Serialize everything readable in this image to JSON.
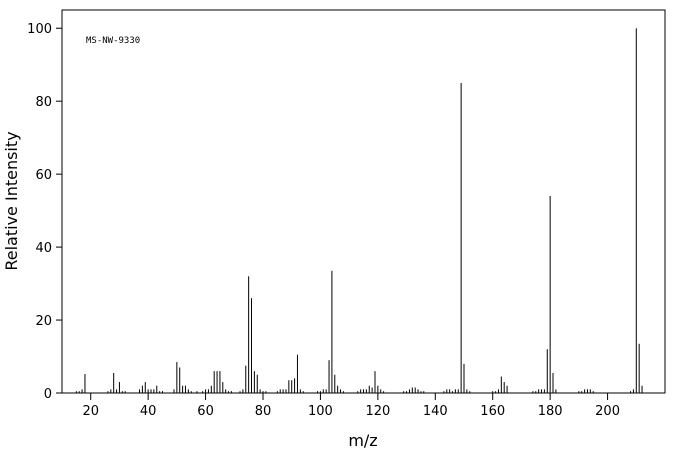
{
  "chart_data": {
    "type": "stem",
    "annotation": "MS-NW-9330",
    "xlabel": "m/z",
    "ylabel": "Relative Intensity",
    "x": [
      15,
      16,
      17,
      18,
      26,
      27,
      28,
      29,
      30,
      31,
      32,
      37,
      38,
      39,
      40,
      41,
      42,
      43,
      44,
      45,
      49,
      50,
      51,
      52,
      53,
      54,
      55,
      57,
      59,
      60,
      61,
      62,
      63,
      64,
      65,
      66,
      67,
      68,
      69,
      72,
      73,
      74,
      75,
      76,
      77,
      78,
      79,
      80,
      81,
      85,
      86,
      87,
      88,
      89,
      90,
      91,
      92,
      93,
      94,
      99,
      100,
      101,
      102,
      103,
      104,
      105,
      106,
      107,
      108,
      113,
      114,
      115,
      116,
      117,
      118,
      119,
      120,
      121,
      122,
      129,
      130,
      131,
      132,
      133,
      134,
      135,
      136,
      143,
      144,
      145,
      146,
      147,
      148,
      149,
      150,
      151,
      152,
      160,
      161,
      162,
      163,
      164,
      165,
      174,
      175,
      176,
      177,
      178,
      179,
      180,
      181,
      182,
      190,
      191,
      192,
      193,
      194,
      195,
      208,
      209,
      210,
      211,
      212
    ],
    "values": [
      0.5,
      0.5,
      1,
      5.2,
      0.5,
      1,
      5.5,
      1,
      3,
      0.5,
      0.5,
      1,
      2,
      3,
      1,
      1,
      1,
      2,
      0.5,
      0.5,
      1,
      8.5,
      7,
      2,
      2,
      1,
      0.5,
      0.5,
      0.5,
      1,
      1,
      2,
      6,
      6,
      6,
      3,
      1,
      0.5,
      0.5,
      0.5,
      1,
      7.5,
      32,
      26,
      6,
      5,
      1,
      0.5,
      0.5,
      0.5,
      1,
      1,
      1,
      3.5,
      3.5,
      4,
      10.5,
      1,
      0.5,
      0.5,
      0.5,
      1,
      1,
      9,
      33.5,
      5,
      2,
      1,
      0.5,
      0.5,
      1,
      1,
      1,
      2,
      1.5,
      6,
      2,
      1,
      0.5,
      0.5,
      0.5,
      1,
      1.5,
      1.5,
      1,
      0.5,
      0.5,
      0.5,
      1,
      1,
      0.5,
      1,
      1,
      85,
      8,
      1,
      0.5,
      0.5,
      0.5,
      1,
      4.5,
      3,
      2,
      0.5,
      0.5,
      1,
      1,
      1,
      12,
      54,
      5.5,
      1,
      0.5,
      0.5,
      1,
      1,
      1,
      0.5,
      0.5,
      1,
      100,
      13.5,
      2
    ],
    "color": "#000000",
    "xlim": [
      10,
      220
    ],
    "xticks": [
      20,
      40,
      60,
      80,
      100,
      120,
      140,
      160,
      180,
      200
    ],
    "ylim": [
      0,
      105
    ],
    "yticks": [
      0,
      20,
      40,
      60,
      80,
      100
    ]
  }
}
